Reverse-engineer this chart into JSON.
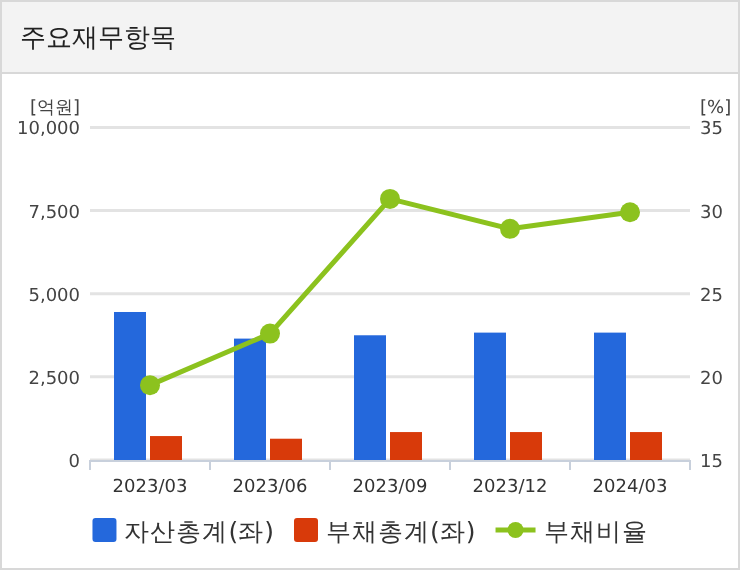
{
  "chart_data": {
    "type": "bar",
    "title": "주요재무항목",
    "ylabel": "[억원]",
    "y2label": "[%]",
    "categories": [
      "2023/03",
      "2023/06",
      "2023/09",
      "2023/12",
      "2024/03"
    ],
    "series": [
      {
        "name": "자산총계(좌)",
        "color": "#2468dc",
        "values": [
          4450,
          3650,
          3750,
          3830,
          3830
        ]
      },
      {
        "name": "부채총계(좌)",
        "color": "#d83a0a",
        "values": [
          720,
          640,
          840,
          840,
          840
        ]
      },
      {
        "name": "부채비율",
        "type": "line",
        "axis": "y2",
        "color": "#8cc21e",
        "marker": "circle",
        "values": [
          19.5,
          22.6,
          30.7,
          28.9,
          29.9
        ]
      }
    ],
    "ylim": [
      0,
      10000
    ],
    "yticks": [
      {
        "value": 0,
        "label": "0"
      },
      {
        "value": 2500,
        "label": "2,500"
      },
      {
        "value": 5000,
        "label": "5,000"
      },
      {
        "value": 7500,
        "label": "7,500"
      },
      {
        "value": 10000,
        "label": "10,000"
      }
    ],
    "y2lim": [
      15,
      35
    ],
    "y2ticks": [
      15,
      20,
      25,
      30,
      35
    ],
    "grid": "y",
    "legend": "bottom"
  }
}
